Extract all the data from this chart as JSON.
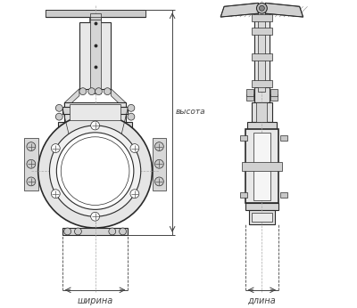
{
  "bg_color": "#ffffff",
  "line_color": "#2a2a2a",
  "dim_color": "#444444",
  "label_width": "ширина",
  "label_height": "высота",
  "label_length": "длина",
  "fig_width": 4.0,
  "fig_height": 3.46
}
